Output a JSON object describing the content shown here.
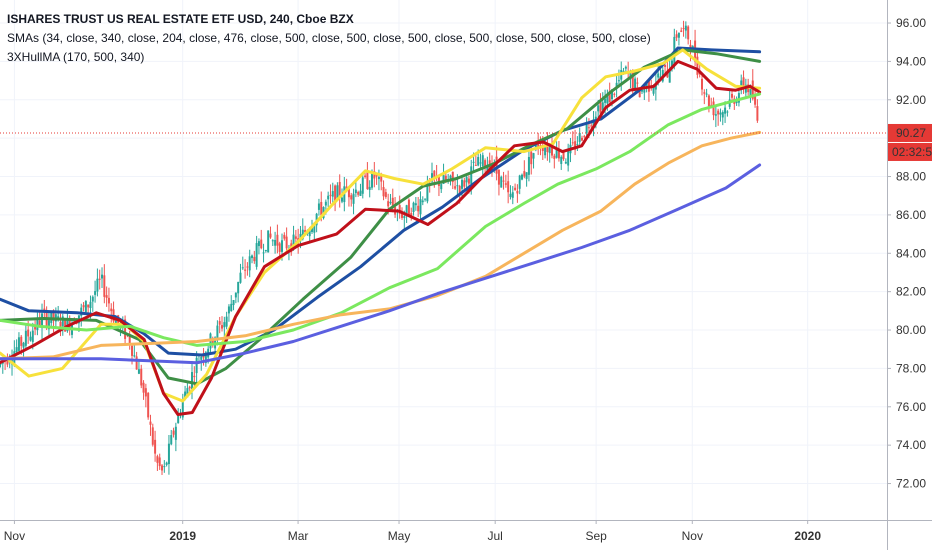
{
  "legend": {
    "title": "ISHARES TRUST US REAL ESTATE ETF USD, 240, Cboe BZX",
    "sma_line": "SMAs (34, close, 340, close, 204, close, 476, close, 500, close, 500, close, 500, close, 500, close, 500, close, 500, close)",
    "hull_line": "3XHullMA (170, 500, 340)"
  },
  "price_label": {
    "value": "90.27",
    "countdown": "02:32:54",
    "color": "#e53935"
  },
  "colors": {
    "up": "#26a69a",
    "down": "#ef5350",
    "grid": "#f0f3fa",
    "axis": "#b2b5be"
  },
  "chart_data": {
    "type": "line",
    "ylim": [
      70.1,
      97.2
    ],
    "y_ticks": [
      72,
      74,
      76,
      78,
      80,
      82,
      84,
      86,
      88,
      90,
      92,
      94,
      96
    ],
    "x_ticks": [
      {
        "label": "Nov",
        "x": 1.2,
        "bold": false
      },
      {
        "label": "2019",
        "x": 4.7,
        "bold": true
      },
      {
        "label": "Mar",
        "x": 7.1,
        "bold": false
      },
      {
        "label": "May",
        "x": 9.2,
        "bold": false
      },
      {
        "label": "Jul",
        "x": 11.2,
        "bold": false
      },
      {
        "label": "Sep",
        "x": 13.3,
        "bold": false
      },
      {
        "label": "Nov",
        "x": 15.3,
        "bold": false
      },
      {
        "label": "2020",
        "x": 17.7,
        "bold": true
      }
    ],
    "xlim": [
      0.9,
      19.35
    ],
    "last_x": 16.7,
    "last_price": 90.27,
    "series": [
      {
        "color": "#1e4fa3",
        "width": 3,
        "points": [
          [
            0.9,
            81.6
          ],
          [
            1.5,
            81.0
          ],
          [
            2.5,
            80.9
          ],
          [
            3.3,
            80.7
          ],
          [
            3.9,
            79.8
          ],
          [
            4.4,
            78.8
          ],
          [
            5.1,
            78.7
          ],
          [
            5.8,
            79.0
          ],
          [
            6.6,
            80.0
          ],
          [
            7.5,
            81.7
          ],
          [
            8.4,
            83.3
          ],
          [
            9.3,
            85.2
          ],
          [
            10.1,
            86.4
          ],
          [
            10.9,
            87.9
          ],
          [
            11.8,
            89.4
          ],
          [
            12.6,
            90.4
          ],
          [
            13.4,
            91.0
          ],
          [
            14.2,
            92.5
          ],
          [
            15.0,
            94.7
          ],
          [
            15.7,
            94.6
          ],
          [
            16.7,
            94.5
          ]
        ]
      },
      {
        "color": "#3e8f46",
        "width": 3,
        "points": [
          [
            0.9,
            80.5
          ],
          [
            1.8,
            80.6
          ],
          [
            2.9,
            80.5
          ],
          [
            3.8,
            79.5
          ],
          [
            4.4,
            77.5
          ],
          [
            5.0,
            77.2
          ],
          [
            5.6,
            78.0
          ],
          [
            6.3,
            79.5
          ],
          [
            7.2,
            81.6
          ],
          [
            8.2,
            83.8
          ],
          [
            9.0,
            86.3
          ],
          [
            9.7,
            87.5
          ],
          [
            10.4,
            87.9
          ],
          [
            11.2,
            88.7
          ],
          [
            11.9,
            89.6
          ],
          [
            12.7,
            90.5
          ],
          [
            13.6,
            92.4
          ],
          [
            14.3,
            93.7
          ],
          [
            15.1,
            94.6
          ],
          [
            15.8,
            94.4
          ],
          [
            16.7,
            94.0
          ]
        ]
      },
      {
        "color": "#f7e13b",
        "width": 3,
        "points": [
          [
            0.9,
            78.8
          ],
          [
            1.5,
            77.6
          ],
          [
            2.2,
            78.0
          ],
          [
            3.0,
            80.3
          ],
          [
            3.5,
            80.3
          ],
          [
            3.9,
            79.4
          ],
          [
            4.3,
            76.7
          ],
          [
            4.7,
            76.3
          ],
          [
            5.2,
            77.7
          ],
          [
            5.8,
            80.7
          ],
          [
            6.4,
            83.0
          ],
          [
            7.1,
            84.6
          ],
          [
            7.8,
            86.5
          ],
          [
            8.5,
            88.3
          ],
          [
            9.1,
            87.9
          ],
          [
            9.7,
            87.6
          ],
          [
            10.3,
            88.4
          ],
          [
            11.0,
            89.5
          ],
          [
            11.8,
            89.3
          ],
          [
            12.4,
            89.7
          ],
          [
            13.0,
            92.1
          ],
          [
            13.5,
            93.2
          ],
          [
            14.1,
            93.5
          ],
          [
            14.7,
            93.9
          ],
          [
            15.1,
            94.6
          ],
          [
            15.6,
            93.6
          ],
          [
            16.2,
            92.7
          ],
          [
            16.7,
            92.6
          ]
        ]
      },
      {
        "color": "#c0101a",
        "width": 3,
        "points": [
          [
            0.9,
            78.3
          ],
          [
            1.6,
            79.2
          ],
          [
            2.3,
            80.2
          ],
          [
            2.9,
            80.9
          ],
          [
            3.4,
            80.5
          ],
          [
            3.9,
            79.5
          ],
          [
            4.3,
            76.7
          ],
          [
            4.6,
            75.6
          ],
          [
            4.9,
            75.7
          ],
          [
            5.3,
            77.5
          ],
          [
            5.8,
            80.7
          ],
          [
            6.4,
            83.3
          ],
          [
            7.1,
            84.4
          ],
          [
            7.9,
            85.0
          ],
          [
            8.5,
            86.3
          ],
          [
            9.2,
            86.2
          ],
          [
            9.8,
            85.5
          ],
          [
            10.4,
            86.6
          ],
          [
            11.1,
            88.4
          ],
          [
            11.6,
            89.6
          ],
          [
            12.2,
            89.8
          ],
          [
            12.6,
            89.3
          ],
          [
            13.0,
            89.6
          ],
          [
            13.5,
            91.6
          ],
          [
            14.0,
            92.5
          ],
          [
            14.5,
            92.7
          ],
          [
            15.0,
            94.0
          ],
          [
            15.4,
            93.6
          ],
          [
            15.8,
            92.6
          ],
          [
            16.2,
            92.5
          ],
          [
            16.5,
            92.7
          ],
          [
            16.7,
            92.4
          ]
        ]
      },
      {
        "color": "#7be85f",
        "width": 3,
        "points": [
          [
            0.9,
            80.5
          ],
          [
            1.7,
            80.2
          ],
          [
            2.7,
            80.0
          ],
          [
            3.6,
            80.2
          ],
          [
            4.3,
            79.6
          ],
          [
            5.0,
            79.2
          ],
          [
            6.0,
            79.4
          ],
          [
            7.0,
            80.0
          ],
          [
            8.0,
            80.9
          ],
          [
            9.0,
            82.2
          ],
          [
            10.0,
            83.2
          ],
          [
            11.0,
            85.4
          ],
          [
            11.8,
            86.6
          ],
          [
            12.5,
            87.6
          ],
          [
            13.3,
            88.4
          ],
          [
            14.0,
            89.3
          ],
          [
            14.8,
            90.7
          ],
          [
            15.5,
            91.5
          ],
          [
            16.1,
            91.9
          ],
          [
            16.7,
            92.3
          ]
        ]
      },
      {
        "color": "#f7b55c",
        "width": 3,
        "points": [
          [
            0.9,
            78.5
          ],
          [
            2.0,
            78.6
          ],
          [
            3.0,
            79.2
          ],
          [
            4.0,
            79.3
          ],
          [
            5.0,
            79.4
          ],
          [
            6.0,
            79.7
          ],
          [
            7.0,
            80.3
          ],
          [
            8.0,
            80.8
          ],
          [
            9.0,
            81.1
          ],
          [
            10.0,
            81.8
          ],
          [
            11.0,
            82.8
          ],
          [
            11.8,
            84.0
          ],
          [
            12.6,
            85.2
          ],
          [
            13.4,
            86.2
          ],
          [
            14.1,
            87.6
          ],
          [
            14.8,
            88.7
          ],
          [
            15.5,
            89.6
          ],
          [
            16.1,
            90.0
          ],
          [
            16.7,
            90.3
          ]
        ]
      },
      {
        "color": "#5b5fe0",
        "width": 3,
        "points": [
          [
            0.9,
            78.5
          ],
          [
            2.0,
            78.5
          ],
          [
            3.0,
            78.5
          ],
          [
            4.0,
            78.4
          ],
          [
            5.0,
            78.3
          ],
          [
            6.0,
            78.8
          ],
          [
            7.0,
            79.4
          ],
          [
            8.0,
            80.2
          ],
          [
            9.0,
            81.0
          ],
          [
            10.0,
            81.9
          ],
          [
            11.0,
            82.7
          ],
          [
            12.0,
            83.5
          ],
          [
            13.0,
            84.3
          ],
          [
            14.0,
            85.2
          ],
          [
            15.0,
            86.3
          ],
          [
            16.0,
            87.4
          ],
          [
            16.7,
            88.6
          ]
        ]
      }
    ],
    "candle_path": [
      [
        0.9,
        78.2
      ],
      [
        1.3,
        79.2
      ],
      [
        1.8,
        80.7
      ],
      [
        2.3,
        80.3
      ],
      [
        2.7,
        81.2
      ],
      [
        3.0,
        82.6
      ],
      [
        3.3,
        80.5
      ],
      [
        3.6,
        79.5
      ],
      [
        3.85,
        77.2
      ],
      [
        4.0,
        75.3
      ],
      [
        4.15,
        73.1
      ],
      [
        4.3,
        72.5
      ],
      [
        4.5,
        74.6
      ],
      [
        4.7,
        76.3
      ],
      [
        5.0,
        78.4
      ],
      [
        5.3,
        79.5
      ],
      [
        5.6,
        80.6
      ],
      [
        5.9,
        82.8
      ],
      [
        6.2,
        84.0
      ],
      [
        6.5,
        84.8
      ],
      [
        6.8,
        84.4
      ],
      [
        7.1,
        84.6
      ],
      [
        7.5,
        86.1
      ],
      [
        7.9,
        87.1
      ],
      [
        8.3,
        87.3
      ],
      [
        8.7,
        88.0
      ],
      [
        9.0,
        86.5
      ],
      [
        9.3,
        86.0
      ],
      [
        9.6,
        86.6
      ],
      [
        9.9,
        87.8
      ],
      [
        10.2,
        87.7
      ],
      [
        10.5,
        87.5
      ],
      [
        10.8,
        88.6
      ],
      [
        11.1,
        88.8
      ],
      [
        11.3,
        87.9
      ],
      [
        11.5,
        86.8
      ],
      [
        11.8,
        88.2
      ],
      [
        12.1,
        89.8
      ],
      [
        12.4,
        89.4
      ],
      [
        12.7,
        89.0
      ],
      [
        13.0,
        90.2
      ],
      [
        13.3,
        91.5
      ],
      [
        13.6,
        92.2
      ],
      [
        13.9,
        93.5
      ],
      [
        14.2,
        92.4
      ],
      [
        14.5,
        93.0
      ],
      [
        14.8,
        93.5
      ],
      [
        15.0,
        95.7
      ],
      [
        15.2,
        95.4
      ],
      [
        15.4,
        93.8
      ],
      [
        15.6,
        92.1
      ],
      [
        15.8,
        91.3
      ],
      [
        16.0,
        91.6
      ],
      [
        16.2,
        92.2
      ],
      [
        16.4,
        92.9
      ],
      [
        16.55,
        92.2
      ],
      [
        16.7,
        90.3
      ]
    ]
  }
}
